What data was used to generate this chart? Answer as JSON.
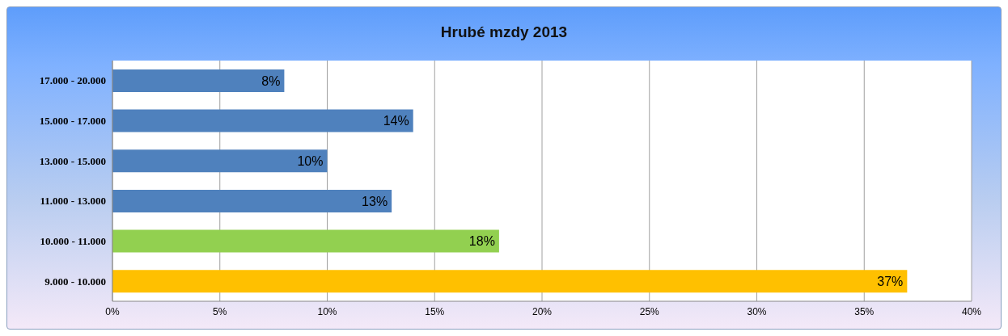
{
  "chart_data": {
    "type": "bar",
    "orientation": "horizontal",
    "title": "Hrubé mzdy 2013",
    "categories": [
      "17.000 - 20.000",
      "15.000 - 17.000",
      "13.000 - 15.000",
      "11.000 - 13.000",
      "10.000 - 11.000",
      "9.000 - 10.000"
    ],
    "values": [
      8,
      14,
      10,
      13,
      18,
      37
    ],
    "colors": [
      "#4f81bd",
      "#4f81bd",
      "#4f81bd",
      "#4f81bd",
      "#92d050",
      "#ffc000"
    ],
    "value_labels": [
      "8%",
      "14%",
      "10%",
      "13%",
      "18%",
      "37%"
    ],
    "xlim": [
      0,
      40
    ],
    "xticks": [
      {
        "value": 0,
        "label": "0%"
      },
      {
        "value": 5,
        "label": "5%"
      },
      {
        "value": 10,
        "label": "10%"
      },
      {
        "value": 15,
        "label": "15%"
      },
      {
        "value": 20,
        "label": "20%"
      },
      {
        "value": 25,
        "label": "25%"
      },
      {
        "value": 30,
        "label": "30%"
      },
      {
        "value": 35,
        "label": "35%"
      },
      {
        "value": 40,
        "label": "40%"
      }
    ],
    "grid": "x"
  }
}
